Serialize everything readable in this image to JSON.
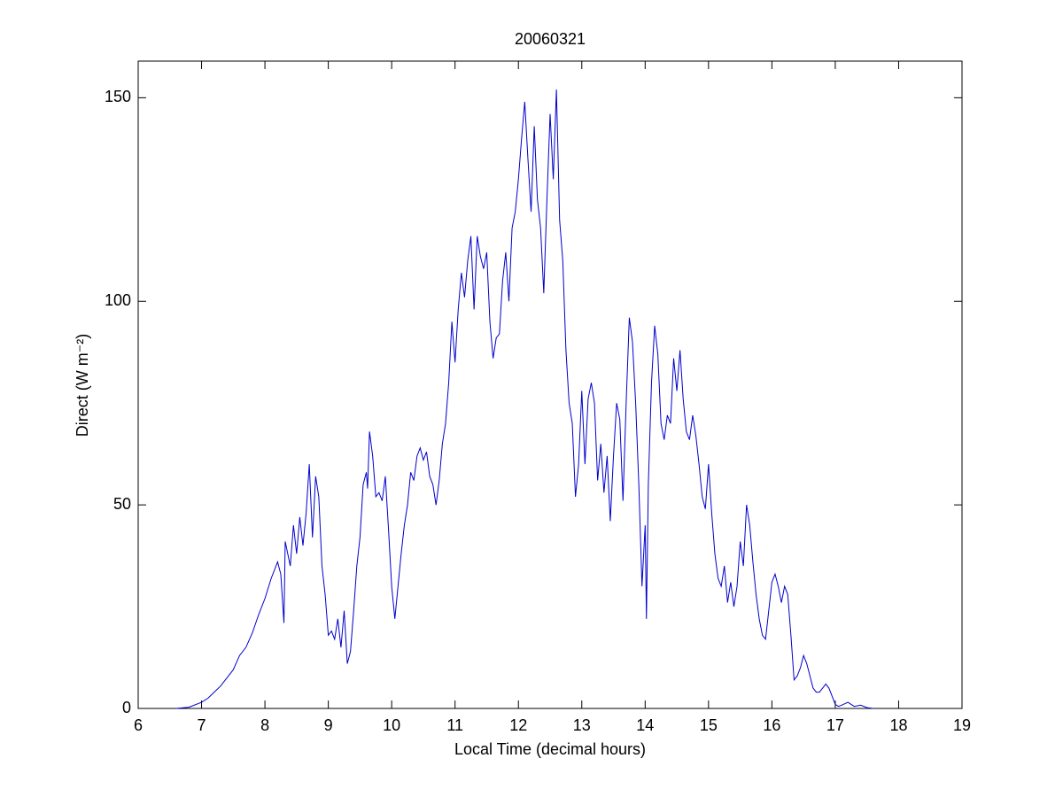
{
  "chart_data": {
    "type": "line",
    "title": "20060321",
    "xlabel": "Local Time (decimal hours)",
    "ylabel": "Direct (W m⁻²)",
    "x": [
      6.6,
      6.8,
      7.0,
      7.1,
      7.2,
      7.3,
      7.4,
      7.5,
      7.6,
      7.7,
      7.8,
      7.9,
      8.0,
      8.1,
      8.2,
      8.25,
      8.3,
      8.32,
      8.4,
      8.45,
      8.5,
      8.55,
      8.6,
      8.65,
      8.7,
      8.75,
      8.8,
      8.85,
      8.9,
      8.95,
      9.0,
      9.05,
      9.1,
      9.15,
      9.2,
      9.25,
      9.3,
      9.35,
      9.4,
      9.45,
      9.5,
      9.55,
      9.6,
      9.62,
      9.65,
      9.7,
      9.75,
      9.8,
      9.85,
      9.9,
      9.95,
      10.0,
      10.05,
      10.1,
      10.15,
      10.2,
      10.25,
      10.3,
      10.35,
      10.4,
      10.45,
      10.5,
      10.55,
      10.6,
      10.65,
      10.7,
      10.75,
      10.8,
      10.85,
      10.9,
      10.95,
      11.0,
      11.05,
      11.1,
      11.15,
      11.2,
      11.25,
      11.3,
      11.35,
      11.4,
      11.45,
      11.5,
      11.55,
      11.6,
      11.65,
      11.7,
      11.75,
      11.8,
      11.85,
      11.9,
      11.95,
      12.0,
      12.05,
      12.1,
      12.15,
      12.2,
      12.25,
      12.3,
      12.35,
      12.4,
      12.45,
      12.5,
      12.55,
      12.6,
      12.65,
      12.7,
      12.75,
      12.8,
      12.85,
      12.9,
      12.95,
      13.0,
      13.05,
      13.1,
      13.15,
      13.2,
      13.25,
      13.3,
      13.35,
      13.4,
      13.45,
      13.5,
      13.55,
      13.6,
      13.65,
      13.7,
      13.75,
      13.8,
      13.85,
      13.9,
      13.95,
      14.0,
      14.02,
      14.05,
      14.1,
      14.15,
      14.2,
      14.25,
      14.3,
      14.35,
      14.4,
      14.45,
      14.5,
      14.55,
      14.6,
      14.65,
      14.7,
      14.75,
      14.8,
      14.85,
      14.9,
      14.95,
      15.0,
      15.05,
      15.1,
      15.15,
      15.2,
      15.25,
      15.3,
      15.35,
      15.4,
      15.45,
      15.5,
      15.55,
      15.6,
      15.65,
      15.7,
      15.75,
      15.8,
      15.85,
      15.9,
      15.95,
      16.0,
      16.05,
      16.1,
      16.15,
      16.2,
      16.25,
      16.3,
      16.35,
      16.4,
      16.45,
      16.5,
      16.55,
      16.6,
      16.65,
      16.7,
      16.75,
      16.8,
      16.85,
      16.9,
      16.95,
      17.0,
      17.05,
      17.1,
      17.2,
      17.3,
      17.4,
      17.5,
      17.6
    ],
    "series": [
      {
        "name": "Direct",
        "color": "#0000cc",
        "values": [
          0,
          0.3,
          1.5,
          2.5,
          4,
          5.5,
          7.5,
          9.5,
          13,
          15,
          18.5,
          23,
          27,
          32,
          36,
          33,
          21,
          41,
          35,
          45,
          38,
          47,
          40,
          48,
          60,
          42,
          57,
          52,
          35,
          28,
          18,
          19,
          17,
          22,
          15,
          24,
          11,
          14,
          24,
          35,
          42,
          55,
          58,
          54,
          68,
          62,
          52,
          53,
          51,
          57,
          44,
          30,
          22,
          30,
          38,
          45,
          50,
          58,
          56,
          62,
          64,
          61,
          63,
          57,
          55,
          50,
          56,
          65,
          70,
          80,
          95,
          85,
          98,
          107,
          101,
          110,
          116,
          98,
          116,
          111,
          108,
          112,
          95,
          86,
          91,
          92,
          105,
          112,
          100,
          118,
          122,
          130,
          140,
          149,
          135,
          122,
          143,
          125,
          118,
          102,
          125,
          146,
          130,
          152,
          120,
          110,
          88,
          75,
          70,
          52,
          60,
          78,
          60,
          76,
          80,
          75,
          56,
          65,
          53,
          62,
          46,
          62,
          75,
          71,
          51,
          75,
          96,
          90,
          75,
          55,
          30,
          45,
          22,
          55,
          80,
          94,
          87,
          70,
          66,
          72,
          70,
          86,
          78,
          88,
          76,
          68,
          66,
          72,
          67,
          60,
          52,
          49,
          60,
          48,
          38,
          32,
          30,
          35,
          26,
          31,
          25,
          30,
          41,
          35,
          50,
          45,
          36,
          28,
          22,
          18,
          17,
          24,
          31,
          33,
          30,
          26,
          30,
          28,
          18,
          7,
          8,
          10,
          13,
          11,
          8,
          5,
          4,
          4,
          5,
          6,
          5,
          3,
          1,
          0.5,
          0.8,
          1.5,
          0.5,
          0.8,
          0.2,
          0
        ]
      }
    ],
    "xlim": [
      6,
      19
    ],
    "xticks": [
      6,
      7,
      8,
      9,
      10,
      11,
      12,
      13,
      14,
      15,
      16,
      17,
      18,
      19
    ],
    "ylim": [
      0,
      159
    ],
    "yticks": [
      0,
      50,
      100,
      150
    ],
    "grid": false
  }
}
